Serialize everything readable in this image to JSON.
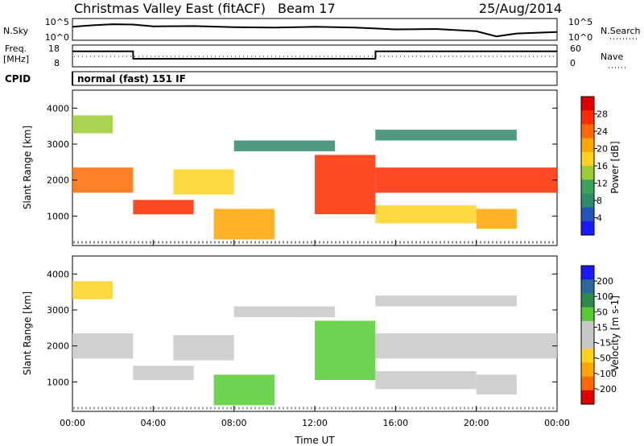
{
  "header": {
    "station": "Christmas Valley East (fitACF)",
    "beam": "Beam 17",
    "date": "25/Aug/2014"
  },
  "noise_panel": {
    "left_label": "N.Sky",
    "left_ticks": [
      "10^5",
      "10^0"
    ],
    "right_label": "N.Search",
    "right_ticks": [
      "10^5",
      "10^0"
    ]
  },
  "freq_panel": {
    "left_label_1": "Freq.",
    "left_label_2": "[MHz]",
    "left_ticks": [
      "18",
      "8"
    ],
    "right_label": "Nave",
    "right_ticks": [
      "60",
      "0"
    ]
  },
  "cpid": {
    "label": "CPID",
    "value": "normal (fast) 151 IF"
  },
  "colors": {
    "power_scale": [
      "#1a1aff",
      "#2255bb",
      "#2f8a6a",
      "#3aa35a",
      "#9acd32",
      "#ffd21f",
      "#ffa500",
      "#ff6a00",
      "#ff2a00",
      "#e00000"
    ],
    "velocity_scale": [
      "#e00000",
      "#ff6a00",
      "#ffa500",
      "#ffd21f",
      "#c8c8c8",
      "#c8c8c8",
      "#55cc33",
      "#2f8a4a",
      "#2a6a9a",
      "#1a1aff"
    ]
  },
  "chart_data": [
    {
      "type": "line",
      "name": "noise",
      "x": [
        0,
        1,
        2,
        3,
        4,
        6,
        8,
        10,
        12,
        14,
        16,
        18,
        20,
        21,
        22,
        24
      ],
      "series": [
        {
          "name": "N.Sky",
          "values": [
            3.2,
            3.6,
            3.9,
            3.8,
            3.3,
            3.4,
            3.1,
            3.0,
            3.2,
            3.0,
            2.5,
            2.6,
            2.0,
            0.6,
            1.4,
            1.8
          ]
        }
      ],
      "xlim": [
        0,
        24
      ],
      "ylim": [
        0,
        5
      ]
    },
    {
      "type": "line",
      "name": "frequency",
      "x": [
        0,
        3,
        3.01,
        15,
        15.01,
        24
      ],
      "series": [
        {
          "name": "Freq.",
          "values": [
            15.5,
            15.5,
            11.5,
            11.5,
            15.5,
            15.5
          ]
        }
      ],
      "xlim": [
        0,
        24
      ],
      "ylim": [
        8,
        18
      ]
    },
    {
      "type": "heatmap",
      "name": "power",
      "xlabel": "",
      "ylabel": "Slant Range [km]",
      "xlim": [
        0,
        24
      ],
      "ylim": [
        180,
        4500
      ],
      "yticks": [
        "1000",
        "2000",
        "3000",
        "4000"
      ],
      "colorbar_label": "Power [dB]",
      "colorbar_ticks": [
        "4",
        "8",
        "12",
        "16",
        "20",
        "24",
        "28"
      ],
      "regions": [
        {
          "t0": 0.0,
          "t1": 3.0,
          "r0": 1650,
          "r1": 2350,
          "level": 0.78
        },
        {
          "t0": 3.0,
          "t1": 6.0,
          "r0": 1050,
          "r1": 1450,
          "level": 0.88
        },
        {
          "t0": 5.0,
          "t1": 8.0,
          "r0": 1600,
          "r1": 2300,
          "level": 0.5
        },
        {
          "t0": 7.0,
          "t1": 10.0,
          "r0": 350,
          "r1": 1200,
          "level": 0.62
        },
        {
          "t0": 12.0,
          "t1": 15.0,
          "r0": 1050,
          "r1": 2700,
          "level": 0.84
        },
        {
          "t0": 15.0,
          "t1": 24.0,
          "r0": 1650,
          "r1": 2350,
          "level": 0.86
        },
        {
          "t0": 15.0,
          "t1": 20.0,
          "r0": 800,
          "r1": 1300,
          "level": 0.55
        },
        {
          "t0": 20.0,
          "t1": 22.0,
          "r0": 650,
          "r1": 1200,
          "level": 0.7
        },
        {
          "t0": 0.0,
          "t1": 2.0,
          "r0": 3300,
          "r1": 3800,
          "level": 0.4
        },
        {
          "t0": 8.0,
          "t1": 13.0,
          "r0": 2800,
          "r1": 3100,
          "level": 0.22
        },
        {
          "t0": 15.0,
          "t1": 22.0,
          "r0": 3100,
          "r1": 3400,
          "level": 0.22
        }
      ]
    },
    {
      "type": "heatmap",
      "name": "velocity",
      "xlabel": "Time UT",
      "ylabel": "Slant Range [km]",
      "xlim": [
        0,
        24
      ],
      "ylim": [
        180,
        4500
      ],
      "xticks": [
        "00:00",
        "04:00",
        "08:00",
        "12:00",
        "16:00",
        "20:00",
        "00:00"
      ],
      "yticks": [
        "1000",
        "2000",
        "3000",
        "4000"
      ],
      "colorbar_label": "Velocity [m s-1]",
      "colorbar_ticks": [
        "200",
        "100",
        "50",
        "15",
        "-15",
        "-50",
        "-100",
        "-200"
      ],
      "regions": [
        {
          "t0": 0.0,
          "t1": 3.0,
          "r0": 1650,
          "r1": 2350,
          "level": 0.5
        },
        {
          "t0": 3.0,
          "t1": 6.0,
          "r0": 1050,
          "r1": 1450,
          "level": 0.5
        },
        {
          "t0": 5.0,
          "t1": 8.0,
          "r0": 1600,
          "r1": 2300,
          "level": 0.5
        },
        {
          "t0": 7.0,
          "t1": 10.0,
          "r0": 350,
          "r1": 1200,
          "level": 0.64
        },
        {
          "t0": 12.0,
          "t1": 15.0,
          "r0": 1050,
          "r1": 2700,
          "level": 0.66
        },
        {
          "t0": 15.0,
          "t1": 24.0,
          "r0": 1650,
          "r1": 2350,
          "level": 0.5
        },
        {
          "t0": 15.0,
          "t1": 20.0,
          "r0": 800,
          "r1": 1300,
          "level": 0.5
        },
        {
          "t0": 20.0,
          "t1": 22.0,
          "r0": 650,
          "r1": 1200,
          "level": 0.5
        },
        {
          "t0": 0.0,
          "t1": 2.0,
          "r0": 3300,
          "r1": 3800,
          "level": 0.35
        },
        {
          "t0": 8.0,
          "t1": 13.0,
          "r0": 2800,
          "r1": 3100,
          "level": 0.42
        },
        {
          "t0": 15.0,
          "t1": 22.0,
          "r0": 3100,
          "r1": 3400,
          "level": 0.4
        }
      ]
    }
  ]
}
